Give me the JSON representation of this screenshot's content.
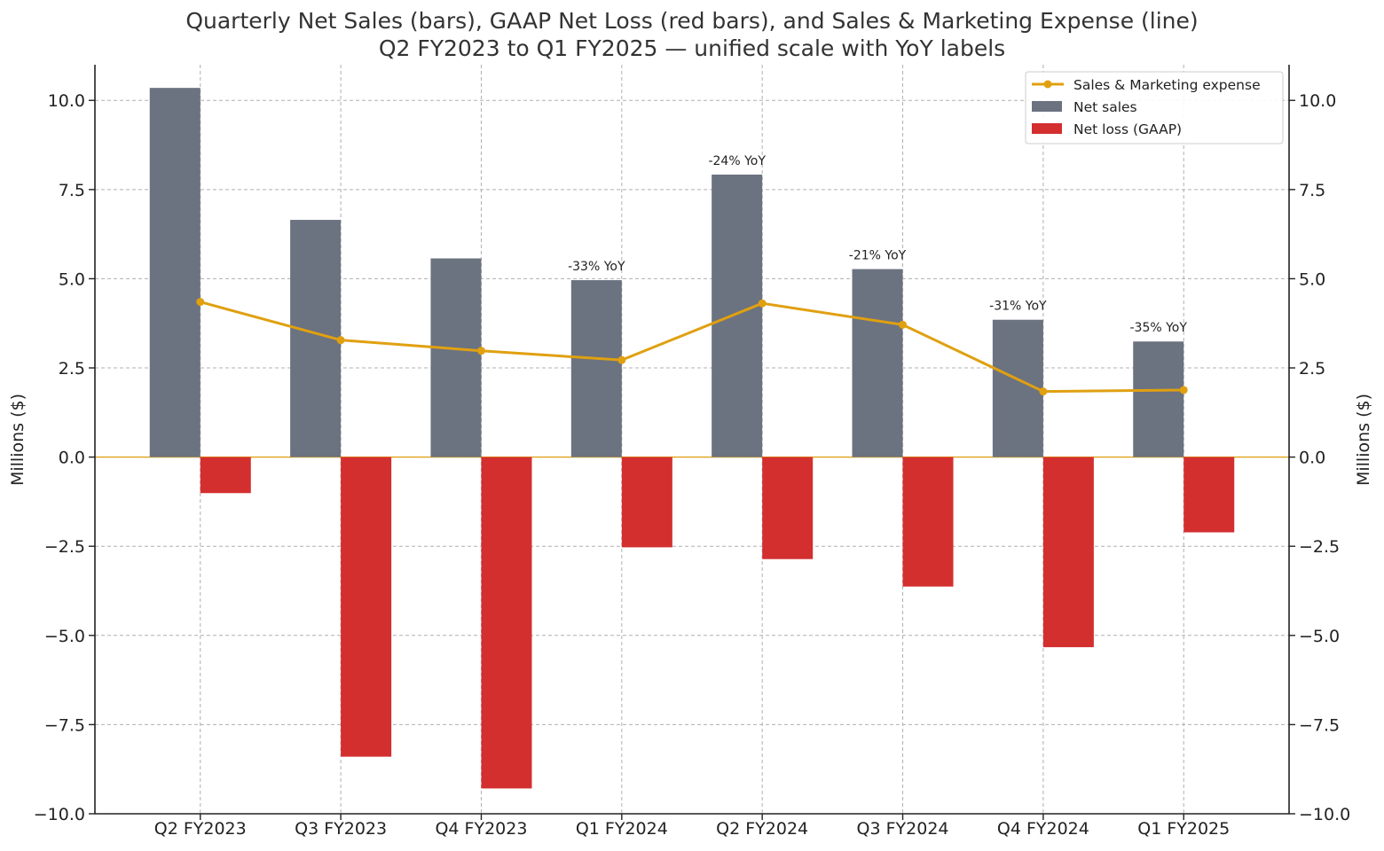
{
  "chart_data": {
    "type": "bar",
    "title": "Quarterly Net Sales (bars), GAAP Net Loss (red bars), and Sales & Marketing Expense (line)",
    "subtitle": "Q2 FY2023 to Q1 FY2025 — unified scale with YoY labels",
    "ylabel_left": "Millions ($)",
    "ylabel_right": "Millions ($)",
    "xlabel": "",
    "ylim": [
      -10,
      11
    ],
    "yticks": [
      -10,
      -7.5,
      -5,
      -2.5,
      0,
      2.5,
      5,
      7.5,
      10
    ],
    "ytick_labels": [
      "−10.0",
      "−7.5",
      "−5.0",
      "−2.5",
      "0.0",
      "2.5",
      "5.0",
      "7.5",
      "10.0"
    ],
    "grid": true,
    "legend_position": "top-right",
    "categories": [
      "Q2 FY2023",
      "Q3 FY2023",
      "Q4 FY2023",
      "Q1 FY2024",
      "Q2 FY2024",
      "Q3 FY2024",
      "Q4 FY2024",
      "Q1 FY2025"
    ],
    "series": [
      {
        "name": "Net sales",
        "kind": "bar",
        "color": "#6b7280",
        "values": [
          10.35,
          6.65,
          5.57,
          4.96,
          7.92,
          5.27,
          3.85,
          3.24
        ]
      },
      {
        "name": "Net loss (GAAP)",
        "kind": "bar",
        "color": "#d32f2f",
        "values": [
          -1.01,
          -8.4,
          -9.29,
          -2.53,
          -2.86,
          -3.63,
          -5.33,
          -2.11
        ]
      },
      {
        "name": "Sales & Marketing expense",
        "kind": "line",
        "color": "#e0a010",
        "values": [
          4.35,
          3.28,
          2.98,
          2.72,
          4.31,
          3.71,
          1.84,
          1.88
        ]
      }
    ],
    "yoy_labels": [
      "",
      "",
      "",
      "-33% YoY",
      "-24% YoY",
      "-21% YoY",
      "-31% YoY",
      "-35% YoY"
    ]
  }
}
